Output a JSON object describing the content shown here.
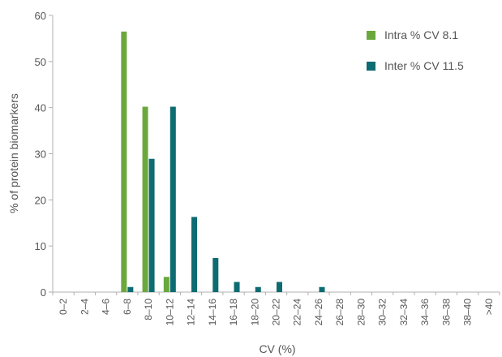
{
  "chart_data": {
    "type": "bar",
    "xlabel": "CV (%)",
    "ylabel": "% of protein biomarkers",
    "ylim": [
      0,
      60
    ],
    "yticks": [
      0,
      10,
      20,
      30,
      40,
      50,
      60
    ],
    "grid": false,
    "legend_position": "top-right",
    "categories": [
      "0–2",
      "2–4",
      "4–6",
      "6–8",
      "8–10",
      "10–12",
      "12–14",
      "14–16",
      "16–18",
      "18–20",
      "20–22",
      "22–24",
      "24–26",
      "26–28",
      "28–30",
      "30–32",
      "32–34",
      "34–36",
      "36–38",
      "38–40",
      ">40"
    ],
    "series": [
      {
        "name": "Intra % CV 8.1",
        "color": "#6aa83e",
        "values": [
          0,
          0,
          0,
          56.5,
          40.2,
          3.3,
          0,
          0,
          0,
          0,
          0,
          0,
          0,
          0,
          0,
          0,
          0,
          0,
          0,
          0,
          0
        ]
      },
      {
        "name": "Inter % CV 11.5",
        "color": "#0d6b72",
        "values": [
          0,
          0,
          0,
          1.1,
          28.9,
          40.2,
          16.3,
          7.4,
          2.2,
          1.1,
          2.2,
          0,
          1.1,
          0,
          0,
          0,
          0,
          0,
          0,
          0,
          0
        ]
      }
    ]
  }
}
